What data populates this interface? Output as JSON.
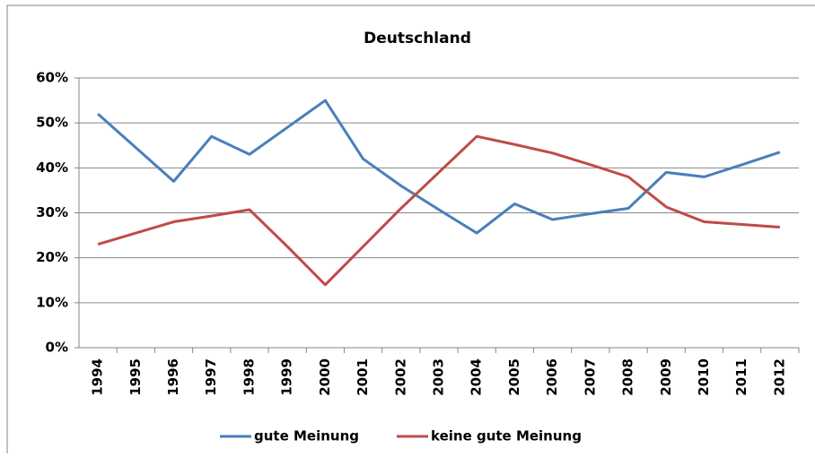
{
  "chart_data": {
    "type": "line",
    "title": "Deutschland",
    "categories": [
      "1994",
      "1995",
      "1996",
      "1997",
      "1998",
      "1999",
      "2000",
      "2001",
      "2002",
      "2003",
      "2004",
      "2005",
      "2006",
      "2007",
      "2008",
      "2009",
      "2010",
      "2011",
      "2012"
    ],
    "series": [
      {
        "name": "gute Meinung",
        "color": "#4a7ebb",
        "values": [
          52,
          44.5,
          37,
          47,
          43,
          49,
          55,
          42,
          36,
          30.7,
          25.5,
          32,
          28.5,
          29.8,
          31,
          39,
          38,
          40.7,
          43.5
        ]
      },
      {
        "name": "keine gute Meinung",
        "color": "#be4b48",
        "values": [
          23,
          25.5,
          28,
          29.3,
          30.7,
          22.5,
          14,
          22.5,
          31,
          39,
          47,
          45.2,
          43.3,
          40.7,
          38,
          31.3,
          28,
          27.4,
          26.8
        ]
      }
    ],
    "ylim": [
      0,
      60
    ],
    "yticks": [
      {
        "value": 0,
        "label": "0%"
      },
      {
        "value": 10,
        "label": "10%"
      },
      {
        "value": 20,
        "label": "20%"
      },
      {
        "value": 30,
        "label": "30%"
      },
      {
        "value": 40,
        "label": "40%"
      },
      {
        "value": 50,
        "label": "50%"
      },
      {
        "value": 60,
        "label": "60%"
      }
    ],
    "grid": true,
    "legend": "bottom"
  }
}
